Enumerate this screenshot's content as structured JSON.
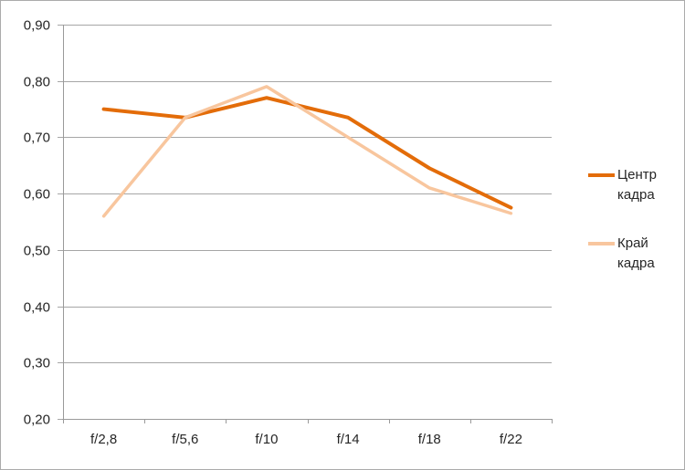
{
  "chart_data": {
    "type": "line",
    "title": "",
    "xlabel": "",
    "ylabel": "",
    "categories": [
      "f/2,8",
      "f/5,6",
      "f/10",
      "f/14",
      "f/18",
      "f/22"
    ],
    "series": [
      {
        "name": "Центр кадра",
        "values": [
          0.75,
          0.735,
          0.77,
          0.735,
          0.645,
          0.575
        ],
        "color": "#E36C09"
      },
      {
        "name": "Край кадра",
        "values": [
          0.56,
          0.735,
          0.79,
          0.7,
          0.61,
          0.565
        ],
        "color": "#F8C69E"
      }
    ],
    "ylim": [
      0.2,
      0.9
    ],
    "y_tick_step": 0.1,
    "y_tick_labels": [
      "0,20",
      "0,30",
      "0,40",
      "0,50",
      "0,60",
      "0,70",
      "0,80",
      "0,90"
    ],
    "grid": true,
    "legend_position": "right"
  },
  "colors": {
    "background": "#FFFFFF",
    "border": "#ABABAB",
    "grid": "#A6A6A6",
    "axis": "#9A9A9A",
    "text": "#262626"
  }
}
